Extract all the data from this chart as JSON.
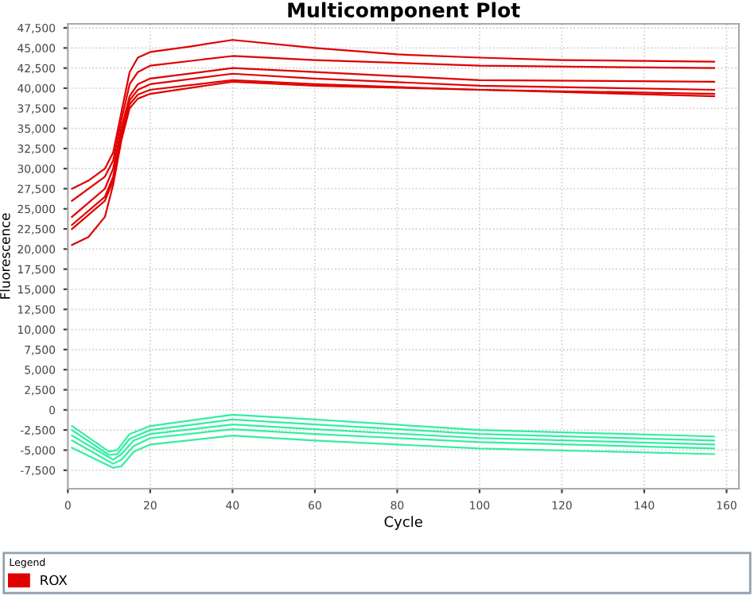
{
  "chart_data": {
    "type": "line",
    "title": "Multicomponent Plot",
    "xlabel": "Cycle",
    "ylabel": "Fluorescence",
    "xlim": [
      0,
      163
    ],
    "ylim": [
      -9800,
      48000
    ],
    "xticks": [
      0,
      20,
      40,
      60,
      80,
      100,
      120,
      140,
      160
    ],
    "yticks": [
      {
        "value": -7500,
        "label": "-7,500"
      },
      {
        "value": -5000,
        "label": "-5,000"
      },
      {
        "value": -2500,
        "label": "-2,500"
      },
      0,
      {
        "value": 2500,
        "label": "2,500"
      },
      {
        "value": 5000,
        "label": "5,000"
      },
      {
        "value": 7500,
        "label": "7,500"
      },
      {
        "value": 10000,
        "label": "10,000"
      },
      {
        "value": 12500,
        "label": "12,500"
      },
      {
        "value": 15000,
        "label": "15,000"
      },
      {
        "value": 17500,
        "label": "17,500"
      },
      {
        "value": 20000,
        "label": "20,000"
      },
      {
        "value": 22500,
        "label": "22,500"
      },
      {
        "value": 25000,
        "label": "25,000"
      },
      {
        "value": 27500,
        "label": "27,500"
      },
      {
        "value": 30000,
        "label": "30,000"
      },
      {
        "value": 32500,
        "label": "32,500"
      },
      {
        "value": 35000,
        "label": "35,000"
      },
      {
        "value": 37500,
        "label": "37,500"
      },
      {
        "value": 40000,
        "label": "40,000"
      },
      {
        "value": 42500,
        "label": "42,500"
      },
      {
        "value": 45000,
        "label": "45,000"
      },
      {
        "value": 47500,
        "label": "47,500"
      }
    ],
    "grid": true,
    "legend": "bottom",
    "legend_title": "Legend",
    "marker": "none",
    "line_style": "solid",
    "series": [
      {
        "color": "#33eea0",
        "x": [
          1,
          10,
          12,
          15,
          20,
          40,
          60,
          100,
          157
        ],
        "values": [
          -2000,
          -5200,
          -5000,
          -3000,
          -2000,
          -600,
          -1200,
          -2500,
          -3300
        ]
      },
      {
        "color": "#33eea0",
        "x": [
          1,
          10,
          12,
          15,
          20,
          40,
          60,
          100,
          157
        ],
        "values": [
          -2500,
          -5600,
          -5500,
          -3600,
          -2500,
          -1200,
          -1800,
          -3000,
          -3800
        ]
      },
      {
        "color": "#33eea0",
        "x": [
          1,
          11,
          13,
          16,
          20,
          40,
          60,
          100,
          157
        ],
        "values": [
          -3200,
          -6200,
          -5500,
          -3800,
          -3000,
          -1800,
          -2400,
          -3500,
          -4300
        ]
      },
      {
        "color": "#33eea0",
        "x": [
          1,
          11,
          13,
          16,
          20,
          40,
          60,
          100,
          157
        ],
        "values": [
          -3800,
          -6700,
          -6200,
          -4500,
          -3500,
          -2400,
          -3000,
          -4000,
          -4800
        ]
      },
      {
        "color": "#33eea0",
        "x": [
          1,
          11,
          13,
          16,
          20,
          40,
          60,
          100,
          157
        ],
        "values": [
          -4700,
          -7200,
          -7000,
          -5200,
          -4300,
          -3200,
          -3800,
          -4800,
          -5500
        ]
      },
      {
        "name": "ROX",
        "color": "#e00000",
        "x": [
          1,
          5,
          9,
          11,
          13,
          15,
          17,
          20,
          30,
          40,
          60,
          80,
          100,
          120,
          157
        ],
        "values": [
          27500,
          28500,
          30000,
          32000,
          37000,
          42000,
          43800,
          44500,
          45200,
          46000,
          45000,
          44200,
          43800,
          43500,
          43300
        ]
      },
      {
        "color": "#e00000",
        "x": [
          1,
          9,
          11,
          13,
          15,
          17,
          20,
          40,
          60,
          100,
          157
        ],
        "values": [
          26000,
          29000,
          31000,
          36000,
          40500,
          42000,
          42800,
          44000,
          43500,
          42800,
          42500
        ]
      },
      {
        "color": "#e00000",
        "x": [
          1,
          9,
          11,
          13,
          15,
          17,
          20,
          40,
          60,
          100,
          157
        ],
        "values": [
          24000,
          27500,
          30000,
          35000,
          39000,
          40500,
          41200,
          42500,
          42000,
          41000,
          40800
        ]
      },
      {
        "color": "#e00000",
        "x": [
          1,
          9,
          11,
          13,
          15,
          17,
          20,
          40,
          60,
          100,
          157
        ],
        "values": [
          23000,
          26500,
          29000,
          34500,
          38500,
          39800,
          40500,
          41800,
          41200,
          40300,
          39800
        ]
      },
      {
        "color": "#e00000",
        "x": [
          1,
          9,
          11,
          13,
          15,
          17,
          20,
          40,
          60,
          100,
          157
        ],
        "values": [
          22500,
          26000,
          28500,
          34000,
          38000,
          39200,
          39800,
          41000,
          40500,
          39800,
          39300
        ]
      },
      {
        "color": "#e00000",
        "x": [
          1,
          5,
          9,
          11,
          13,
          15,
          17,
          20,
          40,
          60,
          100,
          157
        ],
        "values": [
          20500,
          21500,
          24000,
          28000,
          33500,
          37500,
          38700,
          39300,
          40800,
          40300,
          39800,
          39000
        ]
      }
    ]
  }
}
